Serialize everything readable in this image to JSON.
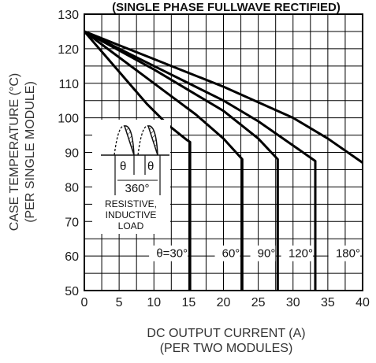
{
  "chart_data": {
    "type": "line",
    "title": "(SINGLE PHASE FULLWAVE RECTIFIED)",
    "xlabel": [
      "DC OUTPUT CURRENT (A)",
      "(PER TWO MODULES)"
    ],
    "ylabel": [
      "CASE TEMPERATURE (°C)",
      "(PER SINGLE MODULE)"
    ],
    "xlim": [
      0,
      40
    ],
    "ylim": [
      50,
      130
    ],
    "xticks": [
      0,
      5,
      10,
      15,
      20,
      25,
      30,
      35,
      40
    ],
    "yticks": [
      50,
      60,
      70,
      80,
      90,
      100,
      110,
      120,
      130
    ],
    "grid": true,
    "series": [
      {
        "name": "θ=30°",
        "x": [
          0,
          3,
          6,
          9,
          12,
          14.8,
          15.2,
          15.2
        ],
        "y": [
          125,
          118,
          111,
          104,
          98,
          93.5,
          93,
          50
        ]
      },
      {
        "name": "60°",
        "x": [
          0,
          4,
          8,
          12,
          16,
          20,
          22.7,
          22.7
        ],
        "y": [
          125,
          119,
          113,
          107,
          101,
          94,
          88,
          50
        ]
      },
      {
        "name": "90°",
        "x": [
          0,
          5,
          10,
          15,
          20,
          25,
          27.8,
          27.8
        ],
        "y": [
          125,
          119.5,
          114,
          108,
          102,
          94,
          88,
          50
        ]
      },
      {
        "name": "120°",
        "x": [
          0,
          5,
          10,
          15,
          20,
          25,
          30,
          33.2,
          33.2
        ],
        "y": [
          125,
          120,
          115,
          110,
          105,
          99,
          92,
          87.5,
          50
        ]
      },
      {
        "name": "180°",
        "x": [
          0,
          5,
          10,
          15,
          20,
          25,
          30,
          35,
          40
        ],
        "y": [
          125,
          121,
          117,
          113,
          109,
          104.5,
          100,
          94,
          87
        ]
      }
    ],
    "annotations": {
      "theta_symbol": "θ",
      "period": "360°",
      "load_lines": [
        "RESISTIVE,",
        "INDUCTIVE",
        "LOAD"
      ]
    }
  }
}
